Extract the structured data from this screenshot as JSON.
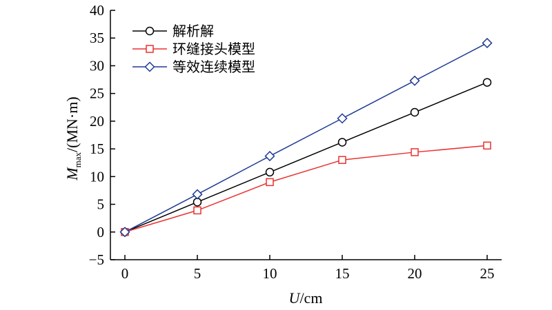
{
  "chart_data": {
    "type": "line",
    "x": [
      0,
      5,
      10,
      15,
      20,
      25
    ],
    "xlim": [
      -1,
      26
    ],
    "ylim": [
      -5,
      40
    ],
    "xticks": [
      "0",
      "5",
      "10",
      "15",
      "20",
      "25"
    ],
    "yticks": [
      "−5",
      "0",
      "5",
      "10",
      "15",
      "20",
      "25",
      "30",
      "35",
      "40"
    ],
    "xlabel": {
      "var": "U",
      "rest": "/cm"
    },
    "ylabel": {
      "var": "M",
      "sub": "max",
      "rest": "/(MN·m)"
    },
    "legend_position": "top-left",
    "grid": false,
    "series": [
      {
        "name": "解析解",
        "values": [
          0,
          5.4,
          10.8,
          16.2,
          21.6,
          27.0
        ],
        "color": "#000000",
        "marker": "circle"
      },
      {
        "name": "环缝接头模型",
        "values": [
          0,
          3.9,
          9.0,
          13.0,
          14.4,
          15.6
        ],
        "color": "#e8312f",
        "marker": "square"
      },
      {
        "name": "等效连续模型",
        "values": [
          0,
          6.8,
          13.7,
          20.5,
          27.3,
          34.1
        ],
        "color": "#1f3a93",
        "marker": "diamond"
      }
    ]
  }
}
